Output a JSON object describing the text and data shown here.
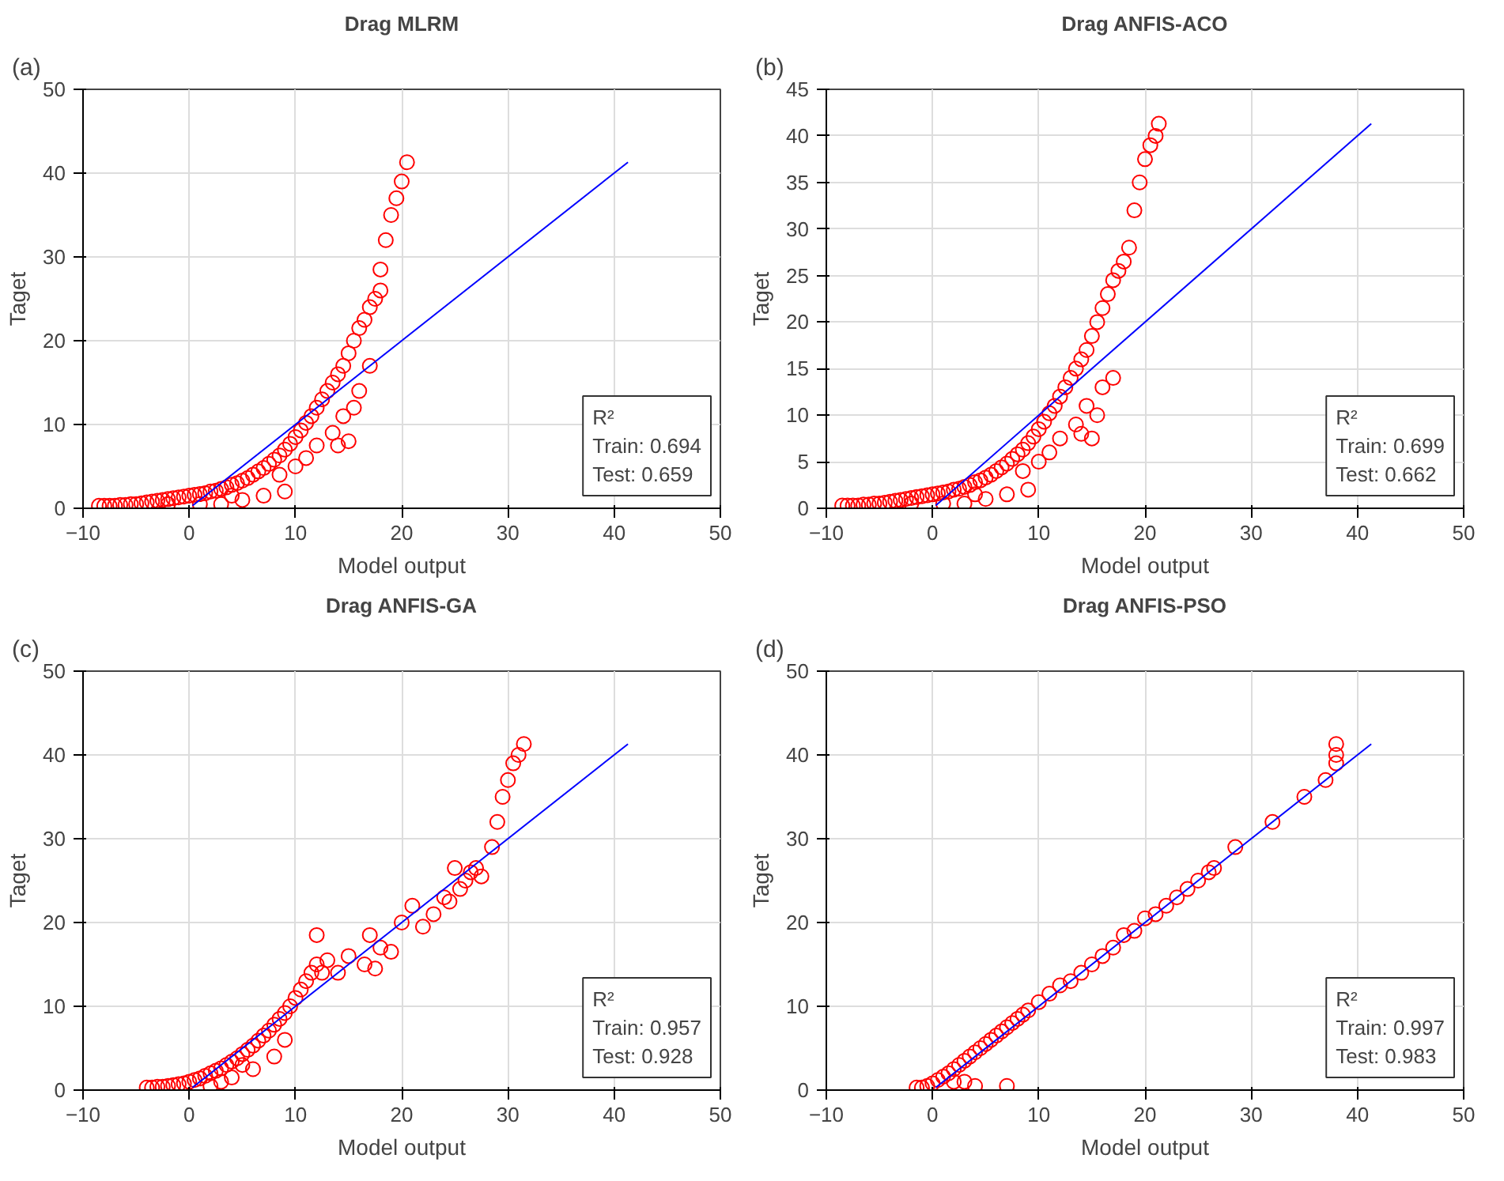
{
  "chart_data": [
    {
      "type": "scatter",
      "title": "Drag MLRM",
      "xlabel": "Model output",
      "ylabel": "Taget",
      "xlim": [
        -10,
        50
      ],
      "ylim": [
        0,
        50
      ],
      "xticks": [
        -10,
        0,
        10,
        20,
        30,
        40,
        50
      ],
      "yticks": [
        0,
        10,
        20,
        30,
        40,
        50
      ],
      "grid": true,
      "annotations": [
        "(a)",
        "R²",
        "Train: 0.694",
        "Test: 0.659"
      ],
      "series": [
        {
          "color": "#ff0000",
          "marker": "circle",
          "x": [
            -8.5,
            -8,
            -7.5,
            -7,
            -6.5,
            -6,
            -5.5,
            -5,
            -4.5,
            -4,
            -3.5,
            -3,
            -2.5,
            -2,
            -1.5,
            -1,
            -0.5,
            0,
            0.5,
            1,
            1.5,
            2,
            2.5,
            3,
            3.5,
            4,
            4.5,
            5,
            5.5,
            6,
            6.5,
            7,
            7.5,
            8,
            8.5,
            9,
            9.5,
            10,
            10.5,
            11,
            11.5,
            12,
            12.5,
            13,
            13.5,
            14,
            14.5,
            15,
            15.5,
            16,
            16.5,
            17,
            17.5,
            18,
            18,
            18.5,
            19,
            19.5,
            20,
            20.5,
            3,
            5,
            7,
            9,
            8.5,
            10,
            11,
            12,
            13.5,
            14,
            15,
            14.5,
            16,
            15.5,
            17,
            1,
            -2,
            4
          ],
          "values": [
            0.3,
            0.3,
            0.3,
            0.3,
            0.4,
            0.4,
            0.5,
            0.5,
            0.6,
            0.7,
            0.8,
            0.9,
            1.0,
            1.1,
            1.2,
            1.3,
            1.4,
            1.5,
            1.6,
            1.7,
            1.8,
            2.0,
            2.1,
            2.3,
            2.5,
            2.8,
            3.0,
            3.3,
            3.6,
            4.0,
            4.4,
            4.8,
            5.3,
            5.8,
            6.3,
            7,
            7.7,
            8.5,
            9.3,
            10.2,
            11,
            12,
            13,
            14,
            15,
            16,
            17,
            18.5,
            20,
            21.5,
            22.5,
            24,
            25,
            26,
            28.5,
            32,
            35,
            37,
            39,
            41.3,
            0.5,
            1,
            1.5,
            2,
            4,
            5,
            6,
            7.5,
            9,
            7.5,
            8,
            11,
            14,
            12,
            17,
            0.5,
            0.5,
            1.5
          ]
        },
        {
          "type": "line",
          "color": "#0000ff",
          "x": [
            0.3,
            41.3
          ],
          "values": [
            0.3,
            41.3
          ]
        }
      ]
    },
    {
      "type": "scatter",
      "title": "Drag ANFIS-ACO",
      "xlabel": "Model output",
      "ylabel": "Taget",
      "xlim": [
        -10,
        50
      ],
      "ylim": [
        0,
        45
      ],
      "xticks": [
        -10,
        0,
        10,
        20,
        30,
        40,
        50
      ],
      "yticks": [
        0,
        5,
        10,
        15,
        20,
        25,
        30,
        35,
        40,
        45
      ],
      "grid": true,
      "annotations": [
        "(b)",
        "R²",
        "Train: 0.699",
        "Test: 0.662"
      ],
      "series": [
        {
          "color": "#ff0000",
          "marker": "circle",
          "x": [
            -8.5,
            -8,
            -7.5,
            -7,
            -6.5,
            -6,
            -5.5,
            -5,
            -4.5,
            -4,
            -3.5,
            -3,
            -2.5,
            -2,
            -1.5,
            -1,
            -0.5,
            0,
            0.5,
            1,
            1.5,
            2,
            2.5,
            3,
            3.5,
            4,
            4.5,
            5,
            5.5,
            6,
            6.5,
            7,
            7.5,
            8,
            8.5,
            9,
            9.5,
            10,
            10.5,
            11,
            11.5,
            12,
            12.5,
            13,
            13.5,
            14,
            14.5,
            15,
            15.5,
            16,
            16.5,
            17,
            17.5,
            18,
            18.5,
            19,
            19.5,
            20,
            20.5,
            21,
            21.3,
            3,
            5,
            7,
            9,
            8.5,
            10,
            11,
            12,
            13.5,
            14,
            15,
            14.5,
            16,
            15.5,
            17,
            1,
            -2,
            4
          ],
          "values": [
            0.3,
            0.3,
            0.3,
            0.3,
            0.4,
            0.4,
            0.5,
            0.5,
            0.6,
            0.7,
            0.8,
            0.9,
            1.0,
            1.1,
            1.2,
            1.3,
            1.4,
            1.5,
            1.6,
            1.7,
            1.8,
            2.0,
            2.1,
            2.3,
            2.5,
            2.8,
            3.0,
            3.3,
            3.6,
            4.0,
            4.4,
            4.8,
            5.3,
            5.8,
            6.3,
            7,
            7.7,
            8.5,
            9.3,
            10.2,
            11,
            12,
            13,
            14,
            15,
            16,
            17,
            18.5,
            20,
            21.5,
            23,
            24.5,
            25.5,
            26.5,
            28,
            32,
            35,
            37.5,
            39,
            40,
            41.3,
            0.5,
            1,
            1.5,
            2,
            4,
            5,
            6,
            7.5,
            9,
            8,
            7.5,
            11,
            13,
            10,
            14,
            0.5,
            0.5,
            1.5
          ]
        },
        {
          "type": "line",
          "color": "#0000ff",
          "x": [
            0.3,
            41.3
          ],
          "values": [
            0.3,
            41.3
          ]
        }
      ]
    },
    {
      "type": "scatter",
      "title": "Drag ANFIS-GA",
      "xlabel": "Model output",
      "ylabel": "Taget",
      "xlim": [
        -10,
        50
      ],
      "ylim": [
        0,
        50
      ],
      "xticks": [
        -10,
        0,
        10,
        20,
        30,
        40,
        50
      ],
      "yticks": [
        0,
        10,
        20,
        30,
        40,
        50
      ],
      "grid": true,
      "annotations": [
        "(c)",
        "R²",
        "Train: 0.957",
        "Test: 0.928"
      ],
      "series": [
        {
          "color": "#ff0000",
          "marker": "circle",
          "x": [
            -4,
            -3.5,
            -3,
            -2.5,
            -2,
            -1.5,
            -1,
            -0.5,
            0,
            0.5,
            1,
            1.5,
            2,
            2.5,
            3,
            3.5,
            4,
            4.5,
            5,
            5.5,
            6,
            6.5,
            7,
            7.5,
            8,
            8.5,
            9,
            9.5,
            10,
            10.5,
            11,
            11.5,
            12,
            12.5,
            13,
            12,
            14,
            15,
            17,
            16.5,
            18,
            19,
            17.5,
            20,
            21,
            22,
            23,
            24,
            24.5,
            25,
            25.5,
            26,
            26.5,
            27,
            27.5,
            28.5,
            29,
            29.5,
            30,
            30.5,
            31,
            31.5,
            2,
            4,
            6,
            8,
            9,
            3,
            5
          ],
          "values": [
            0.3,
            0.3,
            0.4,
            0.4,
            0.5,
            0.6,
            0.7,
            0.8,
            1,
            1.2,
            1.4,
            1.7,
            2,
            2.3,
            2.6,
            3,
            3.4,
            3.8,
            4.3,
            4.8,
            5.3,
            5.9,
            6.5,
            7.1,
            7.8,
            8.5,
            9.2,
            10,
            11,
            12,
            13,
            14,
            15,
            14,
            15.5,
            18.5,
            14,
            16,
            18.5,
            15,
            17,
            16.5,
            14.5,
            20,
            22,
            19.5,
            21,
            23,
            22.5,
            26.5,
            24,
            25,
            26,
            26.5,
            25.5,
            29,
            32,
            35,
            37,
            39,
            40,
            41.3,
            0.5,
            1.5,
            2.5,
            4,
            6,
            1,
            3
          ]
        },
        {
          "type": "line",
          "color": "#0000ff",
          "x": [
            0.3,
            41.3
          ],
          "values": [
            0.3,
            41.3
          ]
        }
      ]
    },
    {
      "type": "scatter",
      "title": "Drag ANFIS-PSO",
      "xlabel": "Model output",
      "ylabel": "Taget",
      "xlim": [
        -10,
        50
      ],
      "ylim": [
        0,
        50
      ],
      "xticks": [
        -10,
        0,
        10,
        20,
        30,
        40,
        50
      ],
      "yticks": [
        0,
        10,
        20,
        30,
        40,
        50
      ],
      "grid": true,
      "annotations": [
        "(d)",
        "R²",
        "Train: 0.997",
        "Test: 0.983"
      ],
      "series": [
        {
          "color": "#ff0000",
          "marker": "circle",
          "x": [
            -1.5,
            -1,
            -0.5,
            0,
            0.5,
            1,
            1.5,
            2,
            2.5,
            3,
            3.5,
            4,
            4.5,
            5,
            5.5,
            6,
            6.5,
            7,
            7.5,
            8,
            8.5,
            9,
            10,
            11,
            12,
            13,
            14,
            15,
            16,
            17,
            18,
            19,
            20,
            21,
            22,
            23,
            24,
            25,
            26,
            26.5,
            28.5,
            32,
            35,
            37,
            38,
            38,
            38,
            4,
            7,
            3,
            2
          ],
          "values": [
            0.3,
            0.3,
            0.5,
            0.8,
            1.2,
            1.6,
            2,
            2.5,
            3,
            3.5,
            4,
            4.5,
            5,
            5.5,
            6,
            6.5,
            7,
            7.5,
            8,
            8.5,
            9,
            9.5,
            10.5,
            11.5,
            12.5,
            13,
            14,
            15,
            16,
            17,
            18.5,
            19,
            20.5,
            21,
            22,
            23,
            24,
            25,
            26,
            26.5,
            29,
            32,
            35,
            37,
            39,
            40,
            41.3,
            0.5,
            0.5,
            1,
            1
          ]
        },
        {
          "type": "line",
          "color": "#0000ff",
          "x": [
            0.3,
            41.3
          ],
          "values": [
            0.3,
            41.3
          ]
        }
      ]
    }
  ]
}
